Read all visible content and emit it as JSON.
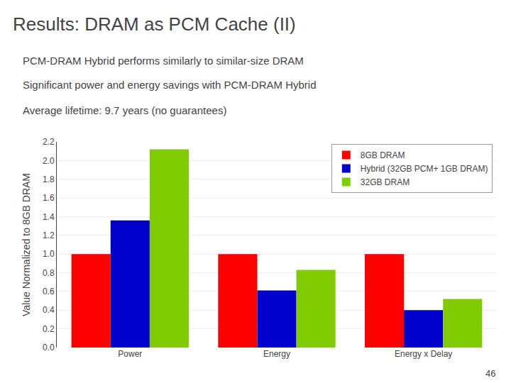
{
  "chart_data": {
    "type": "bar",
    "title": "Results: DRAM as PCM Cache (II)",
    "annotations": [
      "PCM-DRAM Hybrid performs similarly to similar-size DRAM",
      "Significant power and energy savings with PCM-DRAM Hybrid",
      "Average lifetime: 9.7 years (no guarantees)",
      "46"
    ],
    "categories": [
      "Power",
      "Energy",
      "Energy x Delay"
    ],
    "series": [
      {
        "name": "8GB DRAM",
        "color": "#ff0000",
        "values": [
          1.0,
          1.0,
          1.0
        ]
      },
      {
        "name": "Hybrid (32GB PCM+ 1GB DRAM)",
        "color": "#0000cc",
        "values": [
          1.36,
          0.61,
          0.4
        ]
      },
      {
        "name": "32GB DRAM",
        "color": "#80cc00",
        "values": [
          2.12,
          0.83,
          0.52
        ]
      }
    ],
    "ylabel": "Value Normalized to 8GB DRAM",
    "ylim": [
      0,
      2.2
    ],
    "yticks": [
      {
        "value": 0,
        "label": "0.0"
      },
      0.2,
      0.4,
      0.6,
      0.8,
      {
        "value": 1,
        "label": "1.0"
      },
      1.2,
      1.4,
      1.6,
      1.8,
      {
        "value": 2,
        "label": "2.0"
      },
      2.2
    ],
    "grid": true,
    "legend": "upper right"
  }
}
